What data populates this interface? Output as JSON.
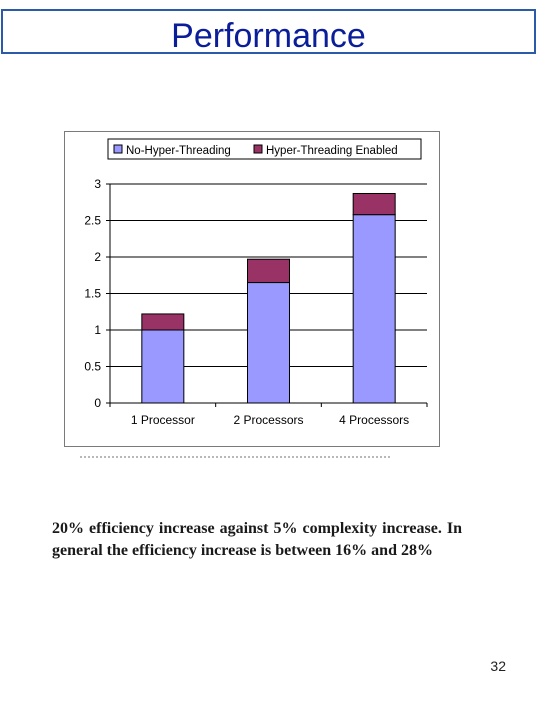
{
  "slide": {
    "title": "Performance",
    "body_text": "20% efficiency increase against 5% complexity increase. In general the efficiency increase is between 16% and 28%",
    "page_number": "32"
  },
  "chart_data": {
    "type": "bar",
    "stacked": true,
    "categories": [
      "1 Processor",
      "2 Processors",
      "4 Processors"
    ],
    "series": [
      {
        "name": "No-Hyper-Threading",
        "values": [
          1.0,
          1.65,
          2.58
        ],
        "color": "#9999ff"
      },
      {
        "name": "Hyper-Threading Enabled",
        "values": [
          0.22,
          0.32,
          0.29
        ],
        "color": "#993366"
      }
    ],
    "title": "",
    "xlabel": "",
    "ylabel": "",
    "ylim": [
      0,
      3
    ],
    "yticks": [
      0,
      0.5,
      1,
      1.5,
      2,
      2.5,
      3
    ],
    "ytick_labels": [
      "0",
      "0.5",
      "1",
      "1.5",
      "2",
      "2.5",
      "3"
    ],
    "grid": true,
    "legend_position": "top"
  }
}
